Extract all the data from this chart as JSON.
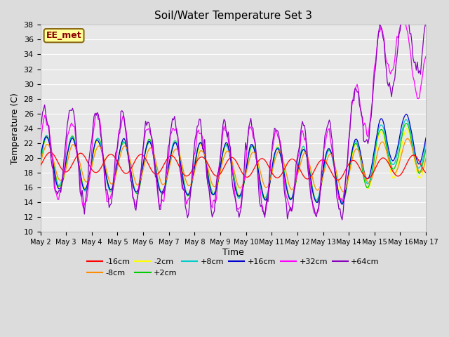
{
  "title": "Soil/Water Temperature Set 3",
  "xlabel": "Time",
  "ylabel": "Temperature (C)",
  "ylim": [
    10,
    38
  ],
  "yticks": [
    10,
    12,
    14,
    16,
    18,
    20,
    22,
    24,
    26,
    28,
    30,
    32,
    34,
    36,
    38
  ],
  "annotation": "EE_met",
  "annotation_color": "#8B0000",
  "annotation_bg": "#FFFF99",
  "annotation_border": "#8B6914",
  "plot_bg": "#E8E8E8",
  "fig_bg": "#DCDCDC",
  "grid_color": "#FFFFFF",
  "colors": {
    "-16cm": "#FF0000",
    "-8cm": "#FF8C00",
    "-2cm": "#FFFF00",
    "+2cm": "#00CC00",
    "+8cm": "#00CCCC",
    "+16cm": "#0000CC",
    "+32cm": "#FF00FF",
    "+64cm": "#8800BB"
  },
  "xtick_labels": [
    "May 2",
    "May 3",
    "May 4",
    "May 5",
    "May 6",
    "May 7",
    "May 8",
    "May 9",
    "May 10",
    "May 11",
    "May 12",
    "May 13",
    "May 14",
    "May 15",
    "May 16",
    "May 17"
  ],
  "figsize": [
    6.4,
    4.8
  ],
  "dpi": 100
}
